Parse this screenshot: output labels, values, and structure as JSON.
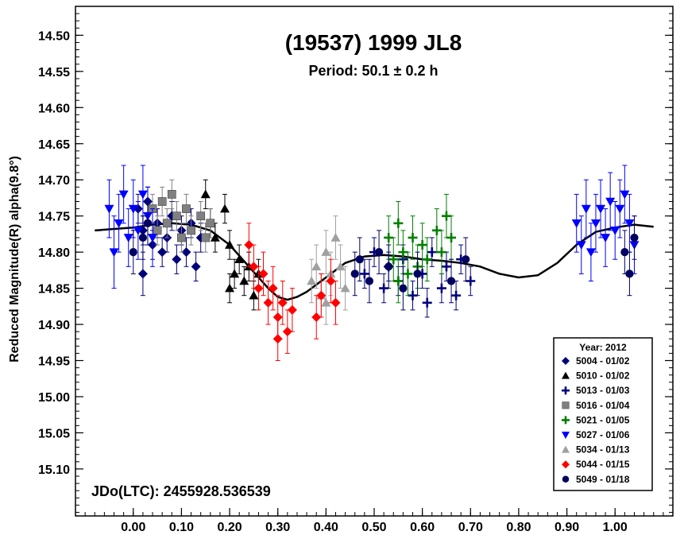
{
  "chart_data": {
    "type": "scatter",
    "title": "(19537) 1999 JL8",
    "subtitle": "Period: 50.1 ± 0.2 h",
    "ylabel": "Reduced Magnitude(R) alpha(9.8°)",
    "xlabel": "",
    "epoch_label": "JDo(LTC): 2455928.536539",
    "xlim": [
      -0.12,
      1.12
    ],
    "ylim": [
      14.46,
      15.165
    ],
    "y_inverted": true,
    "grid": false,
    "x_ticks": [
      "0.00",
      "0.10",
      "0.20",
      "0.30",
      "0.40",
      "0.50",
      "0.60",
      "0.70",
      "0.80",
      "0.90",
      "1.00"
    ],
    "y_ticks": [
      "14.50",
      "14.55",
      "14.60",
      "14.65",
      "14.70",
      "14.75",
      "14.80",
      "14.85",
      "14.90",
      "14.95",
      "15.00",
      "15.05",
      "15.10"
    ],
    "legend": {
      "title": "Year: 2012",
      "placement": "bottom-right",
      "entries": [
        {
          "label": "5004 - 01/02",
          "color": "#00007a",
          "marker": "diamond"
        },
        {
          "label": "5010 - 01/02",
          "color": "#000000",
          "marker": "triangle-up"
        },
        {
          "label": "5013 - 01/03",
          "color": "#000080",
          "marker": "plus"
        },
        {
          "label": "5016 - 01/04",
          "color": "#808080",
          "marker": "square"
        },
        {
          "label": "5021 - 01/05",
          "color": "#008000",
          "marker": "plus"
        },
        {
          "label": "5027 - 01/06",
          "color": "#0000ff",
          "marker": "triangle-down"
        },
        {
          "label": "5034 - 01/13",
          "color": "#a0a0a0",
          "marker": "triangle-up"
        },
        {
          "label": "5044 - 01/15",
          "color": "#ff0000",
          "marker": "diamond"
        },
        {
          "label": "5049 - 01/18",
          "color": "#000060",
          "marker": "circle"
        }
      ]
    },
    "series": [
      {
        "name": "5004 - 01/02",
        "color": "#00007a",
        "marker": "diamond",
        "points": [
          [
            0.01,
            14.74,
            0.02
          ],
          [
            0.02,
            14.77,
            0.02
          ],
          [
            0.03,
            14.73,
            0.02
          ],
          [
            0.04,
            14.79,
            0.02
          ],
          [
            0.05,
            14.76,
            0.02
          ],
          [
            0.06,
            14.8,
            0.02
          ],
          [
            0.07,
            14.78,
            0.02
          ],
          [
            0.08,
            14.75,
            0.02
          ],
          [
            0.09,
            14.81,
            0.02
          ],
          [
            0.1,
            14.77,
            0.02
          ],
          [
            0.11,
            14.8,
            0.02
          ],
          [
            0.12,
            14.76,
            0.02
          ],
          [
            0.13,
            14.82,
            0.02
          ],
          [
            0.14,
            14.78,
            0.02
          ],
          [
            0.02,
            14.83,
            0.03
          ]
        ]
      },
      {
        "name": "5010 - 01/02",
        "color": "#000000",
        "marker": "triangle-up",
        "points": [
          [
            0.15,
            14.72,
            0.02
          ],
          [
            0.16,
            14.76,
            0.02
          ],
          [
            0.17,
            14.78,
            0.02
          ],
          [
            0.19,
            14.74,
            0.02
          ],
          [
            0.2,
            14.79,
            0.02
          ],
          [
            0.21,
            14.83,
            0.02
          ],
          [
            0.22,
            14.81,
            0.02
          ],
          [
            0.23,
            14.84,
            0.02
          ],
          [
            0.24,
            14.82,
            0.02
          ],
          [
            0.25,
            14.86,
            0.02
          ],
          [
            0.26,
            14.83,
            0.02
          ],
          [
            0.2,
            14.85,
            0.02
          ]
        ]
      },
      {
        "name": "5013 - 01/03",
        "color": "#000080",
        "marker": "plus",
        "points": [
          [
            0.48,
            14.83,
            0.02
          ],
          [
            0.5,
            14.8,
            0.02
          ],
          [
            0.52,
            14.85,
            0.02
          ],
          [
            0.53,
            14.82,
            0.02
          ],
          [
            0.55,
            14.84,
            0.02
          ],
          [
            0.56,
            14.81,
            0.02
          ],
          [
            0.58,
            14.86,
            0.02
          ],
          [
            0.6,
            14.83,
            0.02
          ],
          [
            0.62,
            14.8,
            0.02
          ],
          [
            0.64,
            14.85,
            0.02
          ],
          [
            0.65,
            14.82,
            0.02
          ],
          [
            0.67,
            14.86,
            0.02
          ],
          [
            0.68,
            14.81,
            0.02
          ],
          [
            0.7,
            14.84,
            0.02
          ],
          [
            0.61,
            14.87,
            0.02
          ]
        ]
      },
      {
        "name": "5016 - 01/04",
        "color": "#808080",
        "marker": "square",
        "points": [
          [
            0.04,
            14.74,
            0.02
          ],
          [
            0.05,
            14.77,
            0.02
          ],
          [
            0.06,
            14.73,
            0.02
          ],
          [
            0.07,
            14.76,
            0.02
          ],
          [
            0.08,
            14.72,
            0.02
          ],
          [
            0.09,
            14.75,
            0.02
          ],
          [
            0.1,
            14.78,
            0.02
          ],
          [
            0.11,
            14.74,
            0.02
          ],
          [
            0.12,
            14.77,
            0.02
          ],
          [
            0.14,
            14.75,
            0.02
          ],
          [
            0.15,
            14.78,
            0.02
          ],
          [
            0.16,
            14.76,
            0.02
          ]
        ]
      },
      {
        "name": "5021 - 01/05",
        "color": "#008000",
        "marker": "plus",
        "points": [
          [
            0.53,
            14.78,
            0.03
          ],
          [
            0.54,
            14.81,
            0.03
          ],
          [
            0.55,
            14.76,
            0.03
          ],
          [
            0.56,
            14.8,
            0.03
          ],
          [
            0.57,
            14.83,
            0.03
          ],
          [
            0.58,
            14.78,
            0.03
          ],
          [
            0.59,
            14.82,
            0.03
          ],
          [
            0.6,
            14.79,
            0.03
          ],
          [
            0.61,
            14.81,
            0.03
          ],
          [
            0.63,
            14.77,
            0.03
          ],
          [
            0.64,
            14.8,
            0.03
          ],
          [
            0.65,
            14.75,
            0.03
          ],
          [
            0.66,
            14.78,
            0.03
          ],
          [
            0.55,
            14.84,
            0.03
          ]
        ]
      },
      {
        "name": "5027 - 01/06",
        "color": "#0000ff",
        "marker": "triangle-down",
        "points": [
          [
            -0.05,
            14.74,
            0.04
          ],
          [
            -0.04,
            14.8,
            0.05
          ],
          [
            -0.03,
            14.76,
            0.04
          ],
          [
            -0.02,
            14.72,
            0.04
          ],
          [
            -0.01,
            14.78,
            0.04
          ],
          [
            0.0,
            14.74,
            0.04
          ],
          [
            0.01,
            14.77,
            0.04
          ],
          [
            0.02,
            14.72,
            0.04
          ],
          [
            0.03,
            14.75,
            0.04
          ],
          [
            0.04,
            14.78,
            0.04
          ],
          [
            0.92,
            14.76,
            0.04
          ],
          [
            0.93,
            14.79,
            0.04
          ],
          [
            0.94,
            14.74,
            0.04
          ],
          [
            0.95,
            14.8,
            0.04
          ],
          [
            0.96,
            14.76,
            0.04
          ],
          [
            0.97,
            14.74,
            0.04
          ],
          [
            0.98,
            14.78,
            0.04
          ],
          [
            0.99,
            14.73,
            0.04
          ],
          [
            1.0,
            14.77,
            0.04
          ],
          [
            1.01,
            14.74,
            0.04
          ],
          [
            1.02,
            14.72,
            0.04
          ],
          [
            1.03,
            14.76,
            0.04
          ],
          [
            1.04,
            14.79,
            0.04
          ]
        ]
      },
      {
        "name": "5034 - 01/13",
        "color": "#a0a0a0",
        "marker": "triangle-up",
        "points": [
          [
            0.37,
            14.84,
            0.03
          ],
          [
            0.38,
            14.82,
            0.03
          ],
          [
            0.39,
            14.86,
            0.03
          ],
          [
            0.4,
            14.8,
            0.03
          ],
          [
            0.41,
            14.83,
            0.03
          ],
          [
            0.42,
            14.78,
            0.03
          ],
          [
            0.43,
            14.82,
            0.03
          ],
          [
            0.44,
            14.85,
            0.03
          ],
          [
            0.4,
            14.87,
            0.03
          ]
        ]
      },
      {
        "name": "5044 - 01/15",
        "color": "#ff0000",
        "marker": "diamond",
        "points": [
          [
            0.24,
            14.79,
            0.03
          ],
          [
            0.25,
            14.82,
            0.03
          ],
          [
            0.26,
            14.85,
            0.03
          ],
          [
            0.27,
            14.83,
            0.03
          ],
          [
            0.28,
            14.87,
            0.03
          ],
          [
            0.29,
            14.85,
            0.03
          ],
          [
            0.3,
            14.89,
            0.03
          ],
          [
            0.31,
            14.87,
            0.03
          ],
          [
            0.32,
            14.91,
            0.03
          ],
          [
            0.33,
            14.88,
            0.03
          ],
          [
            0.38,
            14.89,
            0.03
          ],
          [
            0.39,
            14.86,
            0.03
          ],
          [
            0.41,
            14.84,
            0.03
          ],
          [
            0.42,
            14.87,
            0.03
          ],
          [
            0.3,
            14.92,
            0.03
          ]
        ]
      },
      {
        "name": "5049 - 01/18",
        "color": "#000060",
        "marker": "circle",
        "points": [
          [
            0.0,
            14.8,
            0.03
          ],
          [
            0.02,
            14.78,
            0.03
          ],
          [
            0.03,
            14.76,
            0.03
          ],
          [
            0.46,
            14.83,
            0.03
          ],
          [
            0.47,
            14.81,
            0.03
          ],
          [
            0.49,
            14.84,
            0.03
          ],
          [
            0.51,
            14.8,
            0.03
          ],
          [
            0.53,
            14.82,
            0.03
          ],
          [
            0.56,
            14.85,
            0.03
          ],
          [
            0.59,
            14.83,
            0.03
          ],
          [
            0.66,
            14.84,
            0.03
          ],
          [
            0.69,
            14.81,
            0.03
          ],
          [
            1.02,
            14.8,
            0.03
          ],
          [
            1.03,
            14.83,
            0.03
          ],
          [
            1.04,
            14.78,
            0.03
          ]
        ]
      }
    ],
    "fit_curve": {
      "color": "#000000",
      "points": [
        [
          -0.08,
          14.77
        ],
        [
          -0.04,
          14.768
        ],
        [
          0.0,
          14.766
        ],
        [
          0.04,
          14.762
        ],
        [
          0.08,
          14.76
        ],
        [
          0.12,
          14.762
        ],
        [
          0.16,
          14.77
        ],
        [
          0.2,
          14.79
        ],
        [
          0.24,
          14.82
        ],
        [
          0.28,
          14.85
        ],
        [
          0.3,
          14.862
        ],
        [
          0.32,
          14.866
        ],
        [
          0.34,
          14.862
        ],
        [
          0.36,
          14.855
        ],
        [
          0.4,
          14.835
        ],
        [
          0.44,
          14.815
        ],
        [
          0.48,
          14.806
        ],
        [
          0.52,
          14.804
        ],
        [
          0.56,
          14.806
        ],
        [
          0.6,
          14.81
        ],
        [
          0.64,
          14.812
        ],
        [
          0.68,
          14.815
        ],
        [
          0.72,
          14.82
        ],
        [
          0.76,
          14.83
        ],
        [
          0.8,
          14.835
        ],
        [
          0.84,
          14.832
        ],
        [
          0.88,
          14.815
        ],
        [
          0.92,
          14.79
        ],
        [
          0.96,
          14.772
        ],
        [
          1.0,
          14.766
        ],
        [
          1.04,
          14.762
        ],
        [
          1.08,
          14.765
        ]
      ]
    }
  }
}
